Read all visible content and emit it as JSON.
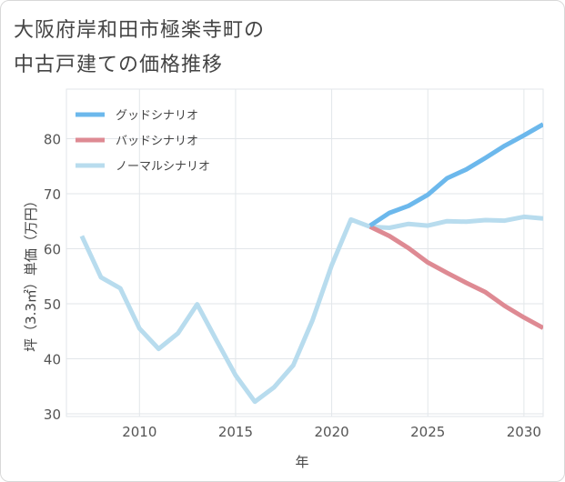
{
  "title_lines": [
    "大阪府岸和田市極楽寺町の",
    "中古戸建ての価格推移"
  ],
  "chart_data": {
    "type": "line",
    "xlabel": "年",
    "ylabel": "坪（3.3㎡）単価（万円）",
    "xlim": [
      2006.2,
      2031
    ],
    "ylim": [
      29.5,
      89
    ],
    "xticks": [
      2010,
      2015,
      2020,
      2025,
      2030
    ],
    "yticks": [
      30,
      40,
      50,
      60,
      70,
      80
    ],
    "grid": true,
    "legend_position": "top-left",
    "series": [
      {
        "name": "グッドシナリオ",
        "color": "#6cb8ec",
        "x": [
          2022,
          2023,
          2024,
          2025,
          2026,
          2027,
          2028,
          2029,
          2030,
          2031
        ],
        "y": [
          64.2,
          66.5,
          67.8,
          69.8,
          72.8,
          74.4,
          76.5,
          78.7,
          80.6,
          82.6
        ]
      },
      {
        "name": "バッドシナリオ",
        "color": "#de8a93",
        "x": [
          2022,
          2023,
          2024,
          2025,
          2026,
          2027,
          2028,
          2029,
          2030,
          2031
        ],
        "y": [
          64.0,
          62.3,
          60.1,
          57.5,
          55.6,
          53.8,
          52.1,
          49.6,
          47.5,
          45.6
        ]
      },
      {
        "name": "ノーマルシナリオ",
        "color": "#b8dcee",
        "x": [
          2007,
          2008,
          2009,
          2010,
          2011,
          2012,
          2013,
          2014,
          2015,
          2016,
          2017,
          2018,
          2019,
          2020,
          2021,
          2022,
          2023,
          2024,
          2025,
          2026,
          2027,
          2028,
          2029,
          2030,
          2031
        ],
        "y": [
          62.3,
          54.8,
          52.8,
          45.5,
          41.8,
          44.6,
          49.9,
          43.4,
          37.0,
          32.2,
          34.8,
          38.8,
          47.0,
          57.0,
          65.3,
          64.0,
          63.8,
          64.5,
          64.2,
          65.0,
          64.9,
          65.2,
          65.1,
          65.8,
          65.5
        ]
      }
    ]
  }
}
